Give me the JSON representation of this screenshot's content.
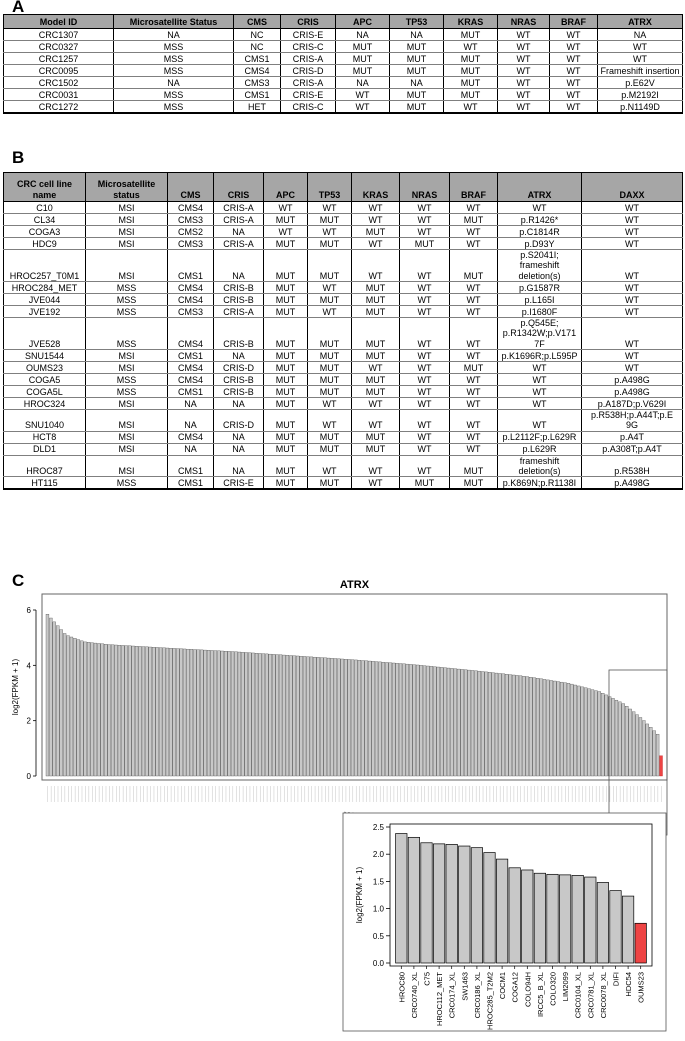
{
  "panels": {
    "a": "A",
    "b": "B",
    "c": "C"
  },
  "tableA": {
    "headers": [
      "Model ID",
      "Microsatellite Status",
      "CMS",
      "CRIS",
      "APC",
      "TP53",
      "KRAS",
      "NRAS",
      "BRAF",
      "ATRX"
    ],
    "rows": [
      [
        "CRC1307",
        "NA",
        "NC",
        "CRIS-E",
        "NA",
        "NA",
        "MUT",
        "WT",
        "WT",
        "NA"
      ],
      [
        "CRC0327",
        "MSS",
        "NC",
        "CRIS-C",
        "MUT",
        "MUT",
        "WT",
        "WT",
        "WT",
        "WT"
      ],
      [
        "CRC1257",
        "MSS",
        "CMS1",
        "CRIS-A",
        "MUT",
        "MUT",
        "MUT",
        "WT",
        "WT",
        "WT"
      ],
      [
        "CRC0095",
        "MSS",
        "CMS4",
        "CRIS-D",
        "MUT",
        "MUT",
        "MUT",
        "WT",
        "WT",
        "Frameshift insertion"
      ],
      [
        "CRC1502",
        "NA",
        "CMS3",
        "CRIS-A",
        "NA",
        "NA",
        "MUT",
        "WT",
        "WT",
        "p.E62V"
      ],
      [
        "CRC0031",
        "MSS",
        "CMS1",
        "CRIS-E",
        "WT",
        "MUT",
        "MUT",
        "WT",
        "WT",
        "p.M2192I"
      ],
      [
        "CRC1272",
        "MSS",
        "HET",
        "CRIS-C",
        "WT",
        "MUT",
        "WT",
        "WT",
        "WT",
        "p.N1149D"
      ]
    ]
  },
  "tableB": {
    "headers": [
      "CRC cell line name",
      "Microsatellite status",
      "CMS",
      "CRIS",
      "APC",
      "TP53",
      "KRAS",
      "NRAS",
      "BRAF",
      "ATRX",
      "DAXX"
    ],
    "rows": [
      [
        "C10",
        "MSI",
        "CMS4",
        "CRIS-A",
        "WT",
        "WT",
        "WT",
        "WT",
        "WT",
        "WT",
        "WT"
      ],
      [
        "CL34",
        "MSI",
        "CMS3",
        "CRIS-A",
        "MUT",
        "MUT",
        "WT",
        "WT",
        "MUT",
        "p.R1426*",
        "WT"
      ],
      [
        "COGA3",
        "MSI",
        "CMS2",
        "NA",
        "WT",
        "WT",
        "MUT",
        "WT",
        "WT",
        "p.C1814R",
        "WT"
      ],
      [
        "HDC9",
        "MSI",
        "CMS3",
        "CRIS-A",
        "MUT",
        "MUT",
        "WT",
        "MUT",
        "WT",
        "p.D93Y",
        "WT"
      ],
      [
        "HROC257_T0M1",
        "MSI",
        "CMS1",
        "NA",
        "MUT",
        "MUT",
        "WT",
        "WT",
        "MUT",
        "p.S2041I; frameshift deletion(s)",
        "WT"
      ],
      [
        "HROC284_MET",
        "MSS",
        "CMS4",
        "CRIS-B",
        "MUT",
        "WT",
        "MUT",
        "WT",
        "WT",
        "p.G1587R",
        "WT"
      ],
      [
        "JVE044",
        "MSS",
        "CMS4",
        "CRIS-B",
        "MUT",
        "MUT",
        "MUT",
        "WT",
        "WT",
        "p.L165I",
        "WT"
      ],
      [
        "JVE192",
        "MSS",
        "CMS3",
        "CRIS-A",
        "MUT",
        "WT",
        "MUT",
        "WT",
        "WT",
        "p.I1680F",
        "WT"
      ],
      [
        "JVE528",
        "MSS",
        "CMS4",
        "CRIS-B",
        "MUT",
        "MUT",
        "MUT",
        "WT",
        "WT",
        "p.Q545E; p.R1342W;p.V171 7F",
        "WT"
      ],
      [
        "SNU1544",
        "MSI",
        "CMS1",
        "NA",
        "MUT",
        "MUT",
        "MUT",
        "WT",
        "WT",
        "p.K1696R;p.L595P",
        "WT"
      ],
      [
        "OUMS23",
        "MSI",
        "CMS4",
        "CRIS-D",
        "MUT",
        "MUT",
        "WT",
        "WT",
        "MUT",
        "WT",
        "WT"
      ],
      [
        "COGA5",
        "MSS",
        "CMS4",
        "CRIS-B",
        "MUT",
        "MUT",
        "MUT",
        "WT",
        "WT",
        "WT",
        "p.A498G"
      ],
      [
        "COGA5L",
        "MSS",
        "CMS1",
        "CRIS-B",
        "MUT",
        "MUT",
        "MUT",
        "WT",
        "WT",
        "WT",
        "p.A498G"
      ],
      [
        "HROC324",
        "MSI",
        "NA",
        "NA",
        "MUT",
        "WT",
        "WT",
        "WT",
        "WT",
        "WT",
        "p.A187D;p.V629I"
      ],
      [
        "SNU1040",
        "MSI",
        "NA",
        "CRIS-D",
        "MUT",
        "WT",
        "WT",
        "WT",
        "WT",
        "WT",
        "p.R538H;p.A44T;p.E 9G"
      ],
      [
        "HCT8",
        "MSI",
        "CMS4",
        "NA",
        "MUT",
        "MUT",
        "MUT",
        "WT",
        "WT",
        "p.L2112F;p.L629R",
        "p.A4T"
      ],
      [
        "DLD1",
        "MSI",
        "NA",
        "NA",
        "MUT",
        "MUT",
        "MUT",
        "WT",
        "WT",
        "p.L629R",
        "p.A308T;p.A4T"
      ],
      [
        "HROC87",
        "MSI",
        "CMS1",
        "NA",
        "MUT",
        "WT",
        "WT",
        "WT",
        "MUT",
        "frameshift deletion(s)",
        "p.R538H"
      ],
      [
        "HT115",
        "MSS",
        "CMS1",
        "CRIS-E",
        "MUT",
        "MUT",
        "WT",
        "MUT",
        "MUT",
        "p.K869N;p.R1138I",
        "p.A498G"
      ]
    ]
  },
  "chart_data": [
    {
      "type": "bar",
      "title": "ATRX",
      "ylabel": "log2(FPKM + 1)",
      "ylim": [
        0,
        6
      ],
      "yticks": [
        0,
        2,
        4,
        6
      ],
      "bar_count": 180,
      "highlight": "last bar (OUMS23)",
      "colors": {
        "bar": "#c8c8c8",
        "highlight": "#ee4444"
      },
      "profile": [
        [
          0,
          5.85
        ],
        [
          0.01,
          5.6
        ],
        [
          0.03,
          5.1
        ],
        [
          0.06,
          4.85
        ],
        [
          0.1,
          4.75
        ],
        [
          0.2,
          4.62
        ],
        [
          0.3,
          4.5
        ],
        [
          0.4,
          4.35
        ],
        [
          0.5,
          4.2
        ],
        [
          0.6,
          4.02
        ],
        [
          0.7,
          3.8
        ],
        [
          0.78,
          3.6
        ],
        [
          0.85,
          3.35
        ],
        [
          0.9,
          3.05
        ],
        [
          0.94,
          2.6
        ],
        [
          0.97,
          2.05
        ],
        [
          0.995,
          1.5
        ],
        [
          1.0,
          0.73
        ]
      ]
    },
    {
      "type": "bar",
      "ylabel": "log2(FPKM + 1)",
      "ylim": [
        0,
        2.5
      ],
      "yticks": [
        "0.0",
        "0.5",
        "1.0",
        "1.5",
        "2.0",
        "2.5"
      ],
      "categories": [
        "HROC80",
        "CRC0740_XL",
        "C75",
        "HROC112_MET",
        "CRC0174_XL",
        "SW1463",
        "CRC0186_XL",
        "HROC285_T2M2",
        "COCM1",
        "COGA12",
        "COLO94H",
        "IRCC5_B_XL",
        "COLO320",
        "LIM2099",
        "CRC0104_XL",
        "CRC0781_XL",
        "CRC0078_XL",
        "DIFI",
        "HDC54",
        "OUMS23"
      ],
      "values": [
        2.38,
        2.31,
        2.21,
        2.19,
        2.18,
        2.15,
        2.12,
        2.03,
        1.91,
        1.75,
        1.71,
        1.65,
        1.63,
        1.62,
        1.61,
        1.58,
        1.48,
        1.33,
        1.23,
        0.73
      ],
      "highlight_index": 19,
      "colors": {
        "bar": "#c8c8c8",
        "highlight": "#ee4444"
      }
    }
  ]
}
